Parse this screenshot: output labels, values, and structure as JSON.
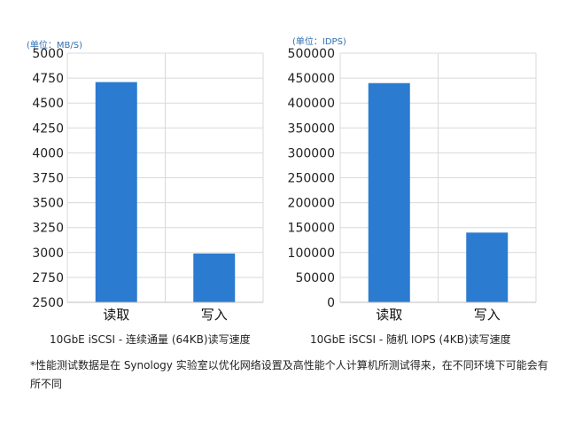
{
  "chart_data": [
    {
      "type": "bar",
      "unit_label": "(单位：MB/S)",
      "categories": [
        "读取",
        "写入"
      ],
      "values": [
        4710,
        2990
      ],
      "ylim": [
        2500,
        5000
      ],
      "yticks": [
        2500,
        2750,
        3000,
        3250,
        3500,
        3750,
        4000,
        4250,
        4500,
        4750,
        5000
      ],
      "caption": "10GbE iSCSI - 连续通量 (64KB)读写速度",
      "bar_color": "#2b7bd1",
      "grid": true
    },
    {
      "type": "bar",
      "unit_label": "(单位：IDPS)",
      "categories": [
        "读取",
        "写入"
      ],
      "values": [
        440000,
        140000
      ],
      "ylim": [
        0,
        500000
      ],
      "yticks": [
        0,
        50000,
        100000,
        150000,
        200000,
        250000,
        300000,
        350000,
        400000,
        450000,
        500000
      ],
      "caption": "10GbE iSCSI - 随机 IOPS (4KB)读写速度",
      "bar_color": "#2b7bd1",
      "grid": true
    }
  ],
  "footnote": "*性能测试数据是在 Synology 实验室以优化网络设置及高性能个人计算机所测试得来，在不同环境下可能会有所不同"
}
